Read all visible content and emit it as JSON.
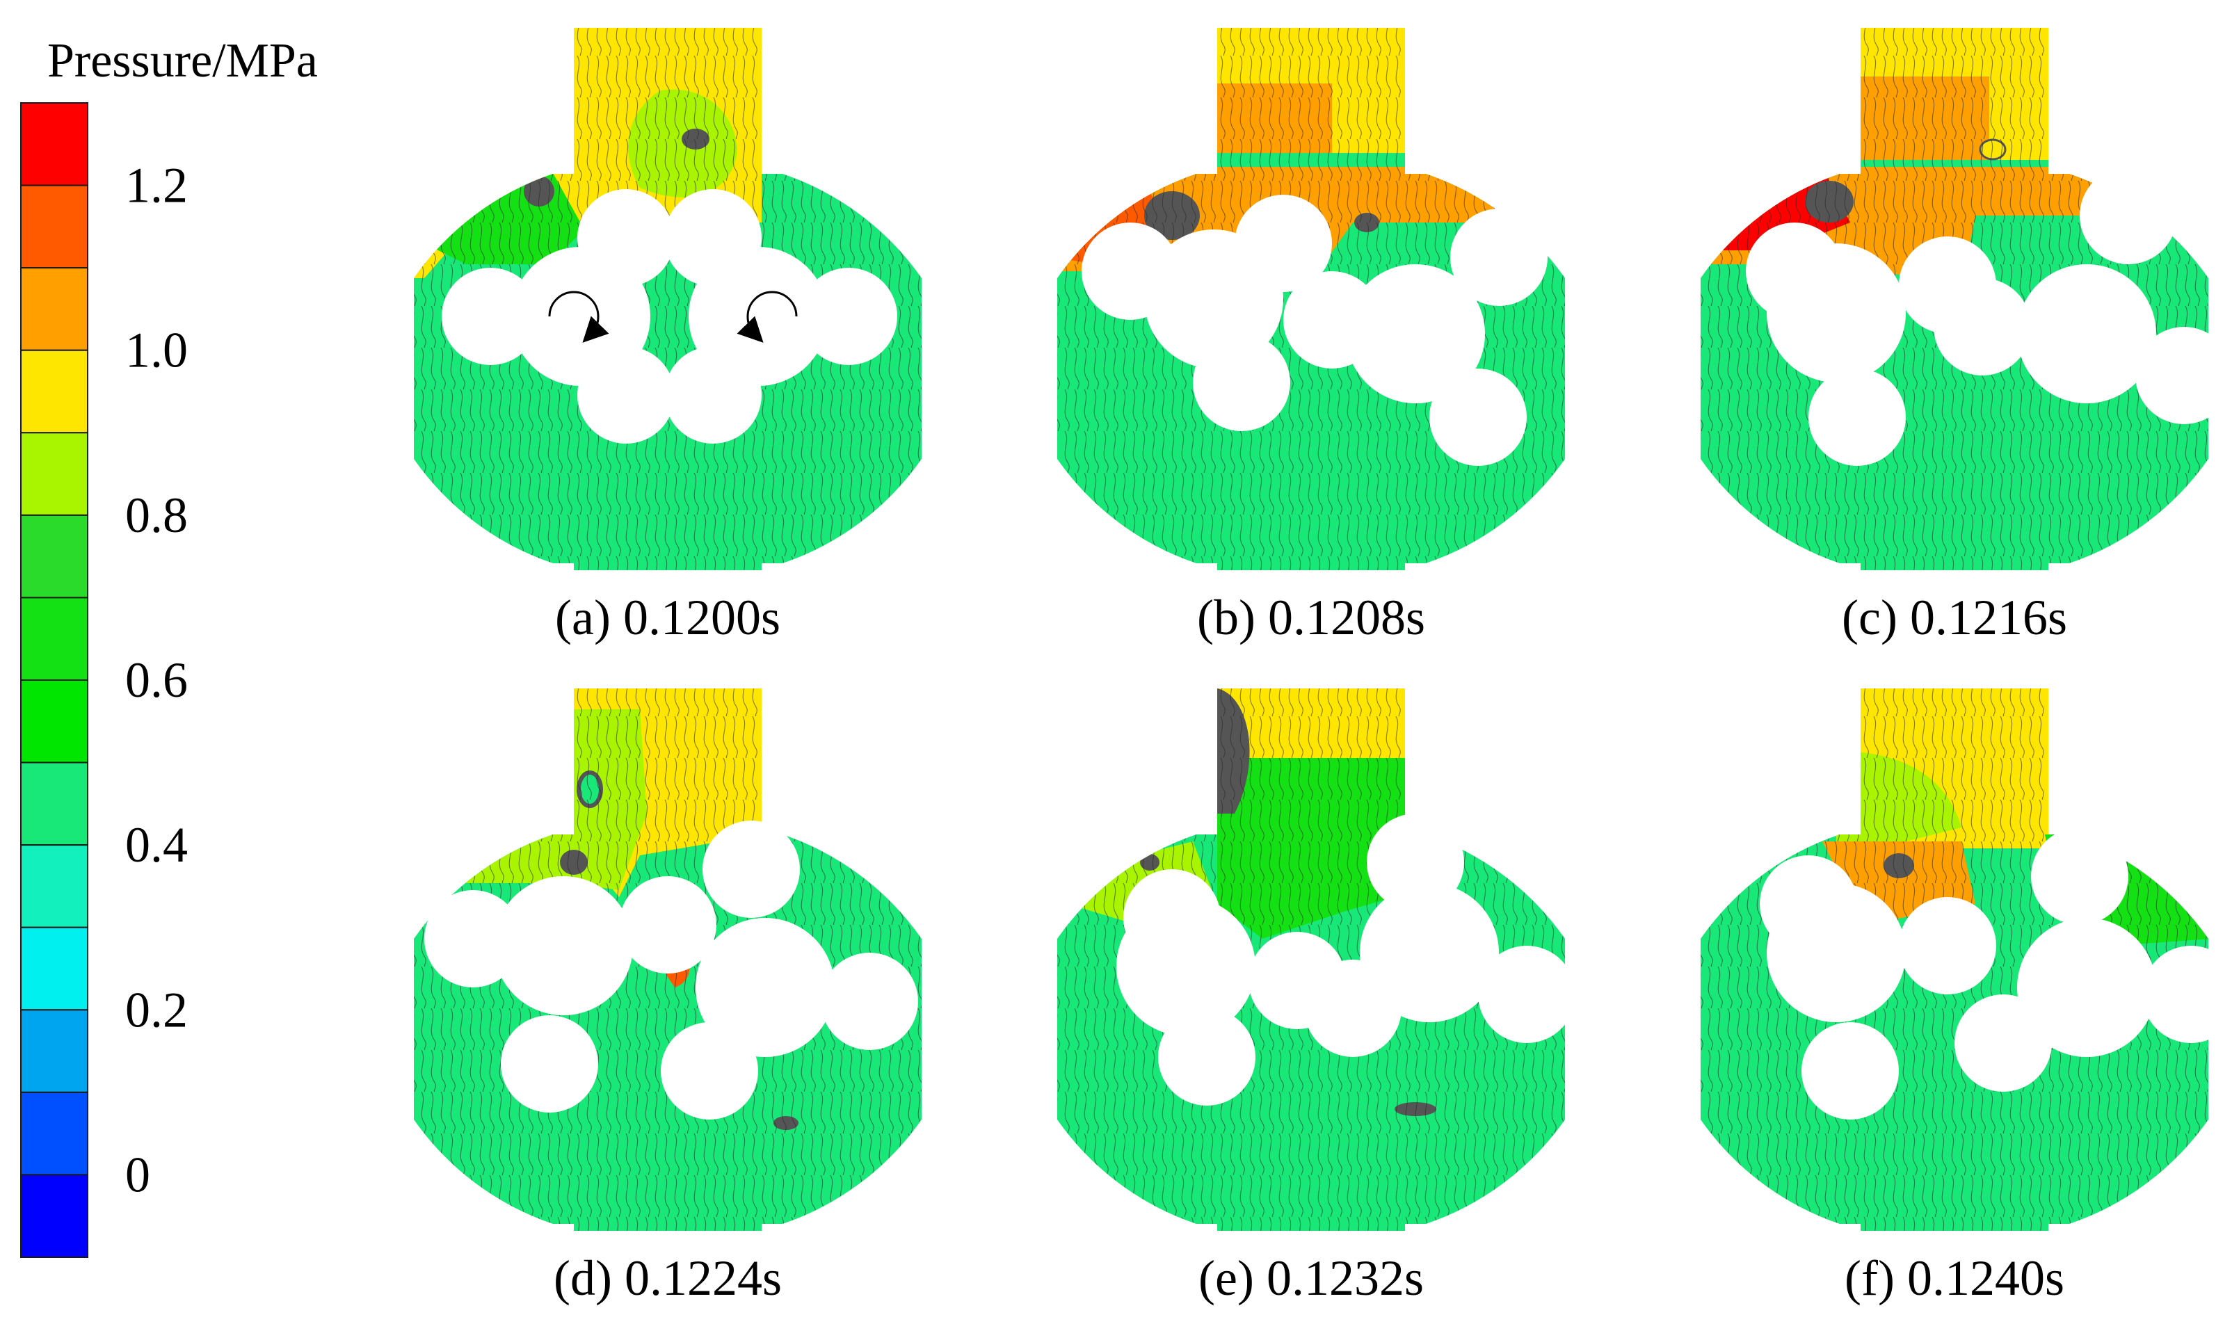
{
  "legend": {
    "title": "Pressure/MPa",
    "colors": [
      "#ff0000",
      "#ff5a00",
      "#ff9f00",
      "#ffe600",
      "#a9f500",
      "#2bdb2b",
      "#14e114",
      "#00e600",
      "#18e878",
      "#12f0be",
      "#00f0f0",
      "#00a5f0",
      "#0050ff",
      "#0000ff"
    ],
    "ticks": [
      {
        "label": "1.2",
        "value": 1.2
      },
      {
        "label": "1.0",
        "value": 1.0
      },
      {
        "label": "0.8",
        "value": 0.8
      },
      {
        "label": "0.6",
        "value": 0.6
      },
      {
        "label": "0.4",
        "value": 0.4
      },
      {
        "label": "0.2",
        "value": 0.2
      },
      {
        "label": "0",
        "value": 0.0
      }
    ]
  },
  "panels": [
    {
      "label": "(a) 0.1200s"
    },
    {
      "label": "(b) 0.1208s"
    },
    {
      "label": "(c) 0.1216s"
    },
    {
      "label": "(d) 0.1224s"
    },
    {
      "label": "(e) 0.1232s"
    },
    {
      "label": "(f) 0.1240s"
    }
  ]
}
